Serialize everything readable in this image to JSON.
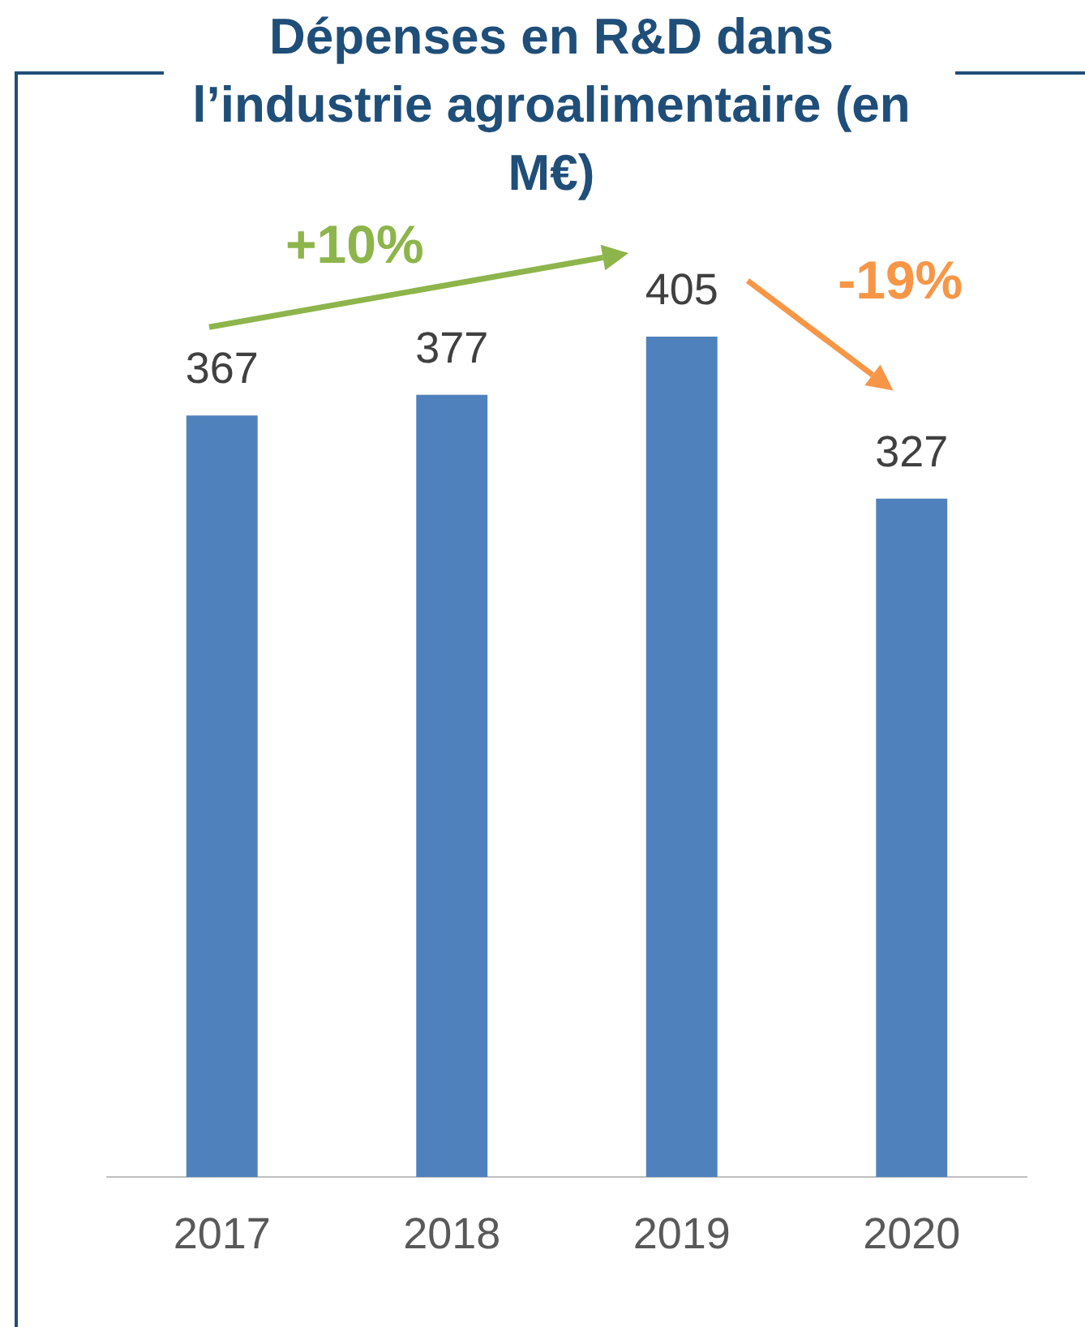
{
  "chart_data": {
    "type": "bar",
    "title": "Dépenses en R&D dans l’industrie agroalimentaire (en M€)",
    "categories": [
      "2017",
      "2018",
      "2019",
      "2020"
    ],
    "values": [
      367,
      377,
      405,
      327
    ],
    "color": "#4f81bd",
    "data_labels": true,
    "grid": false,
    "legend": false,
    "annotations": [
      "+10%",
      "-19%"
    ]
  }
}
